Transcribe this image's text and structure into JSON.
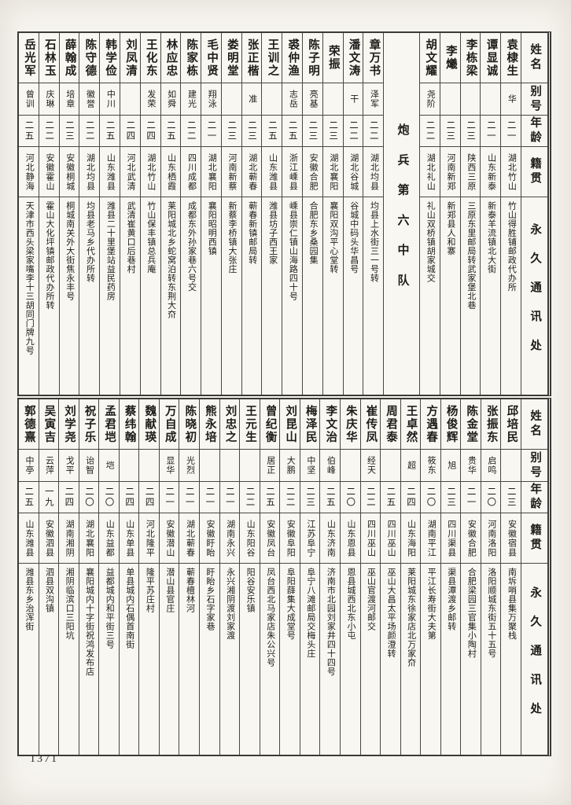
{
  "page": {
    "number": "1371"
  },
  "headers": {
    "name": "姓名",
    "alias": "别号",
    "age": "年龄",
    "native": "籍贯",
    "address": "永久通讯处"
  },
  "unit_label": "炮兵第六中队",
  "tables": [
    {
      "id": "top",
      "unit_after": 5,
      "entries": [
        {
          "name": "袁棣生",
          "alias": "华",
          "age": "二一",
          "native": "湖北竹山",
          "address": "竹山得胜铺邮政代办所"
        },
        {
          "name": "谭显诚",
          "alias": "",
          "age": "二一",
          "native": "山东新泰",
          "address": "新泰羊流镇北大街"
        },
        {
          "name": "李栋梁",
          "alias": "",
          "age": "二三",
          "native": "陕西三原",
          "address": "三原东里邮局转武家堡北巷"
        },
        {
          "name": "李爔",
          "alias": "",
          "age": "二三",
          "native": "河南新郑",
          "address": "新郑县人和寨"
        },
        {
          "name": "胡文耀",
          "alias": "尧阶",
          "age": "二二",
          "native": "湖北礼山",
          "address": "礼山双桥镇胡家城交"
        },
        {
          "name": "章万书",
          "alias": "泽军",
          "age": "二二",
          "native": "湖北均县",
          "address": "均县上水街三一号转"
        },
        {
          "name": "潘文涛",
          "alias": "干",
          "age": "二二",
          "native": "湖北谷城",
          "address": "谷城中码头华昌号"
        },
        {
          "name": "荣振",
          "alias": "",
          "age": "二三",
          "native": "湖北襄阳",
          "address": "襄阳双沟平心堂转"
        },
        {
          "name": "陈子明",
          "alias": "亮基",
          "age": "二三",
          "native": "安徽合肥",
          "address": "合肥东乡桑园集"
        },
        {
          "name": "裘仲渔",
          "alias": "志岳",
          "age": "二五",
          "native": "浙江嵊县",
          "address": "嵊县崇仁镇山海路四十号"
        },
        {
          "name": "王训之",
          "alias": "",
          "age": "二五",
          "native": "山东潍县",
          "address": "潍县坊子西王家"
        },
        {
          "name": "张正楷",
          "alias": "准",
          "age": "二三",
          "native": "湖北蕲春",
          "address": "蕲春新镇邮局转"
        },
        {
          "name": "娄明堂",
          "alias": "",
          "age": "二三",
          "native": "河南新蔡",
          "address": "新蔡李桥镇大张庄"
        },
        {
          "name": "毛中贤",
          "alias": "翔泳",
          "age": "二一",
          "native": "湖北襄阳",
          "address": "襄阳昭明西镇"
        },
        {
          "name": "陈家栋",
          "alias": "建光",
          "age": "二二",
          "native": "四川成都",
          "address": "成都东外孙家巷六号交"
        },
        {
          "name": "林应忠",
          "alias": "如舜",
          "age": "二五",
          "native": "山东栖霞",
          "address": "莱阳城北乡蛇窝泊转东荆大夼"
        },
        {
          "name": "王化东",
          "alias": "发荣",
          "age": "二四",
          "native": "湖北竹山",
          "address": "竹山保丰镇总兵庵"
        },
        {
          "name": "刘凤清",
          "alias": "",
          "age": "二四",
          "native": "河北武清",
          "address": "武清崔黄口后巷村"
        },
        {
          "name": "韩学俭",
          "alias": "中川",
          "age": "二五",
          "native": "山东潍县",
          "address": "潍县二十里堡站益民药房"
        },
        {
          "name": "陈守德",
          "alias": "徽誉",
          "age": "二二",
          "native": "湖北均县",
          "address": "均县老马乡代办所转"
        },
        {
          "name": "薛翰成",
          "alias": "培章",
          "age": "二三",
          "native": "安徽桐城",
          "address": "桐城南关外大街焦永丰号"
        },
        {
          "name": "石林玉",
          "alias": "庆琳",
          "age": "二二",
          "native": "安徽霍山",
          "address": "霍山大化坪镇邮政代办所转"
        },
        {
          "name": "岳光军",
          "alias": "曾训",
          "age": "二五",
          "native": "河北静海",
          "address": "天津市西头梁家嘴李十三胡同门牌九号"
        }
      ]
    },
    {
      "id": "bottom",
      "unit_after": -1,
      "entries": [
        {
          "name": "邱培民",
          "alias": "",
          "age": "二三",
          "native": "安徽宿县",
          "address": "南坼哨县集万聚栈"
        },
        {
          "name": "张振东",
          "alias": "启鸣",
          "age": "二〇",
          "native": "河南洛阳",
          "address": "洛阳顺城东街五十五号"
        },
        {
          "name": "陈金堂",
          "alias": "贵华",
          "age": "二一",
          "native": "安徽合肥",
          "address": "合肥梁园三官集小陶村"
        },
        {
          "name": "杨俊辉",
          "alias": "旭",
          "age": "二三",
          "native": "四川渠县",
          "address": "渠县潭渡乡邮转"
        },
        {
          "name": "方遇春",
          "alias": "筱东",
          "age": "二〇",
          "native": "湖南平江",
          "address": "平江长寿街大夫第"
        },
        {
          "name": "王卓然",
          "alias": "超",
          "age": "二四",
          "native": "山东海阳",
          "address": "莱阳城东徐家店北万家夼"
        },
        {
          "name": "周君泰",
          "alias": "",
          "age": "二五",
          "native": "四川巫山",
          "address": "巫山大昌太平场颜澄转"
        },
        {
          "name": "崔传凤",
          "alias": "经天",
          "age": "二二",
          "native": "四川巫山",
          "address": "巫山官渡河邮交"
        },
        {
          "name": "朱庆华",
          "alias": "",
          "age": "二〇",
          "native": "山东恩县",
          "address": "恩县城西北东小屯"
        },
        {
          "name": "李文治",
          "alias": "伯峰",
          "age": "二五",
          "native": "山东济南",
          "address": "济南市北园刘家井四十四号"
        },
        {
          "name": "梅泽民",
          "alias": "中坚",
          "age": "二三",
          "native": "江苏阜宁",
          "address": "阜宁八滩邮局交梅头庄"
        },
        {
          "name": "刘昆山",
          "alias": "大鹏",
          "age": "二二",
          "native": "安徽阜阳",
          "address": "阜阳薛集大成堂号"
        },
        {
          "name": "曾纪衡",
          "alias": "居正",
          "age": "二五",
          "native": "安徽凤台",
          "address": "凤台西北马家店朱公兴号"
        },
        {
          "name": "王元生",
          "alias": "",
          "age": "二二",
          "native": "山东阳谷",
          "address": "阳谷安乐镇"
        },
        {
          "name": "刘忠之",
          "alias": "",
          "age": "二一",
          "native": "湖南永兴",
          "address": "永兴湘阴渡刘家渡"
        },
        {
          "name": "熊永培",
          "alias": "",
          "age": "二一",
          "native": "安徽盱眙",
          "address": "盱眙乡石字家巷"
        },
        {
          "name": "陈晓初",
          "alias": "光烈",
          "age": "二一",
          "native": "湖北蕲春",
          "address": "蕲春檀林河"
        },
        {
          "name": "万自成",
          "alias": "显华",
          "age": "二一",
          "native": "安徽潜山",
          "address": "潜山县官庄"
        },
        {
          "name": "魏献瑛",
          "alias": "",
          "age": "二四",
          "native": "河北隆平",
          "address": "隆平苏庄村"
        },
        {
          "name": "蔡纬翰",
          "alias": "",
          "age": "二四",
          "native": "山东单县",
          "address": "单县城内石偶首南街"
        },
        {
          "name": "孟君垲",
          "alias": "垲",
          "age": "二〇",
          "native": "山东益都",
          "address": "益都城内和平街三号"
        },
        {
          "name": "祝子乐",
          "alias": "诒智",
          "age": "二〇",
          "native": "湖北襄阳",
          "address": "襄阳城内十字街祝鸿发布店"
        },
        {
          "name": "刘学尧",
          "alias": "戈平",
          "age": "二四",
          "native": "湖南湘阴",
          "address": "湘阴临滨口三阳坑"
        },
        {
          "name": "吴寅吉",
          "alias": "云萍",
          "age": "一九",
          "native": "安徽泗县",
          "address": "泗县双沟镇"
        },
        {
          "name": "郭德熹",
          "alias": "中亭",
          "age": "二五",
          "native": "山东潍县",
          "address": "潍县东乡治浑街"
        }
      ]
    }
  ]
}
